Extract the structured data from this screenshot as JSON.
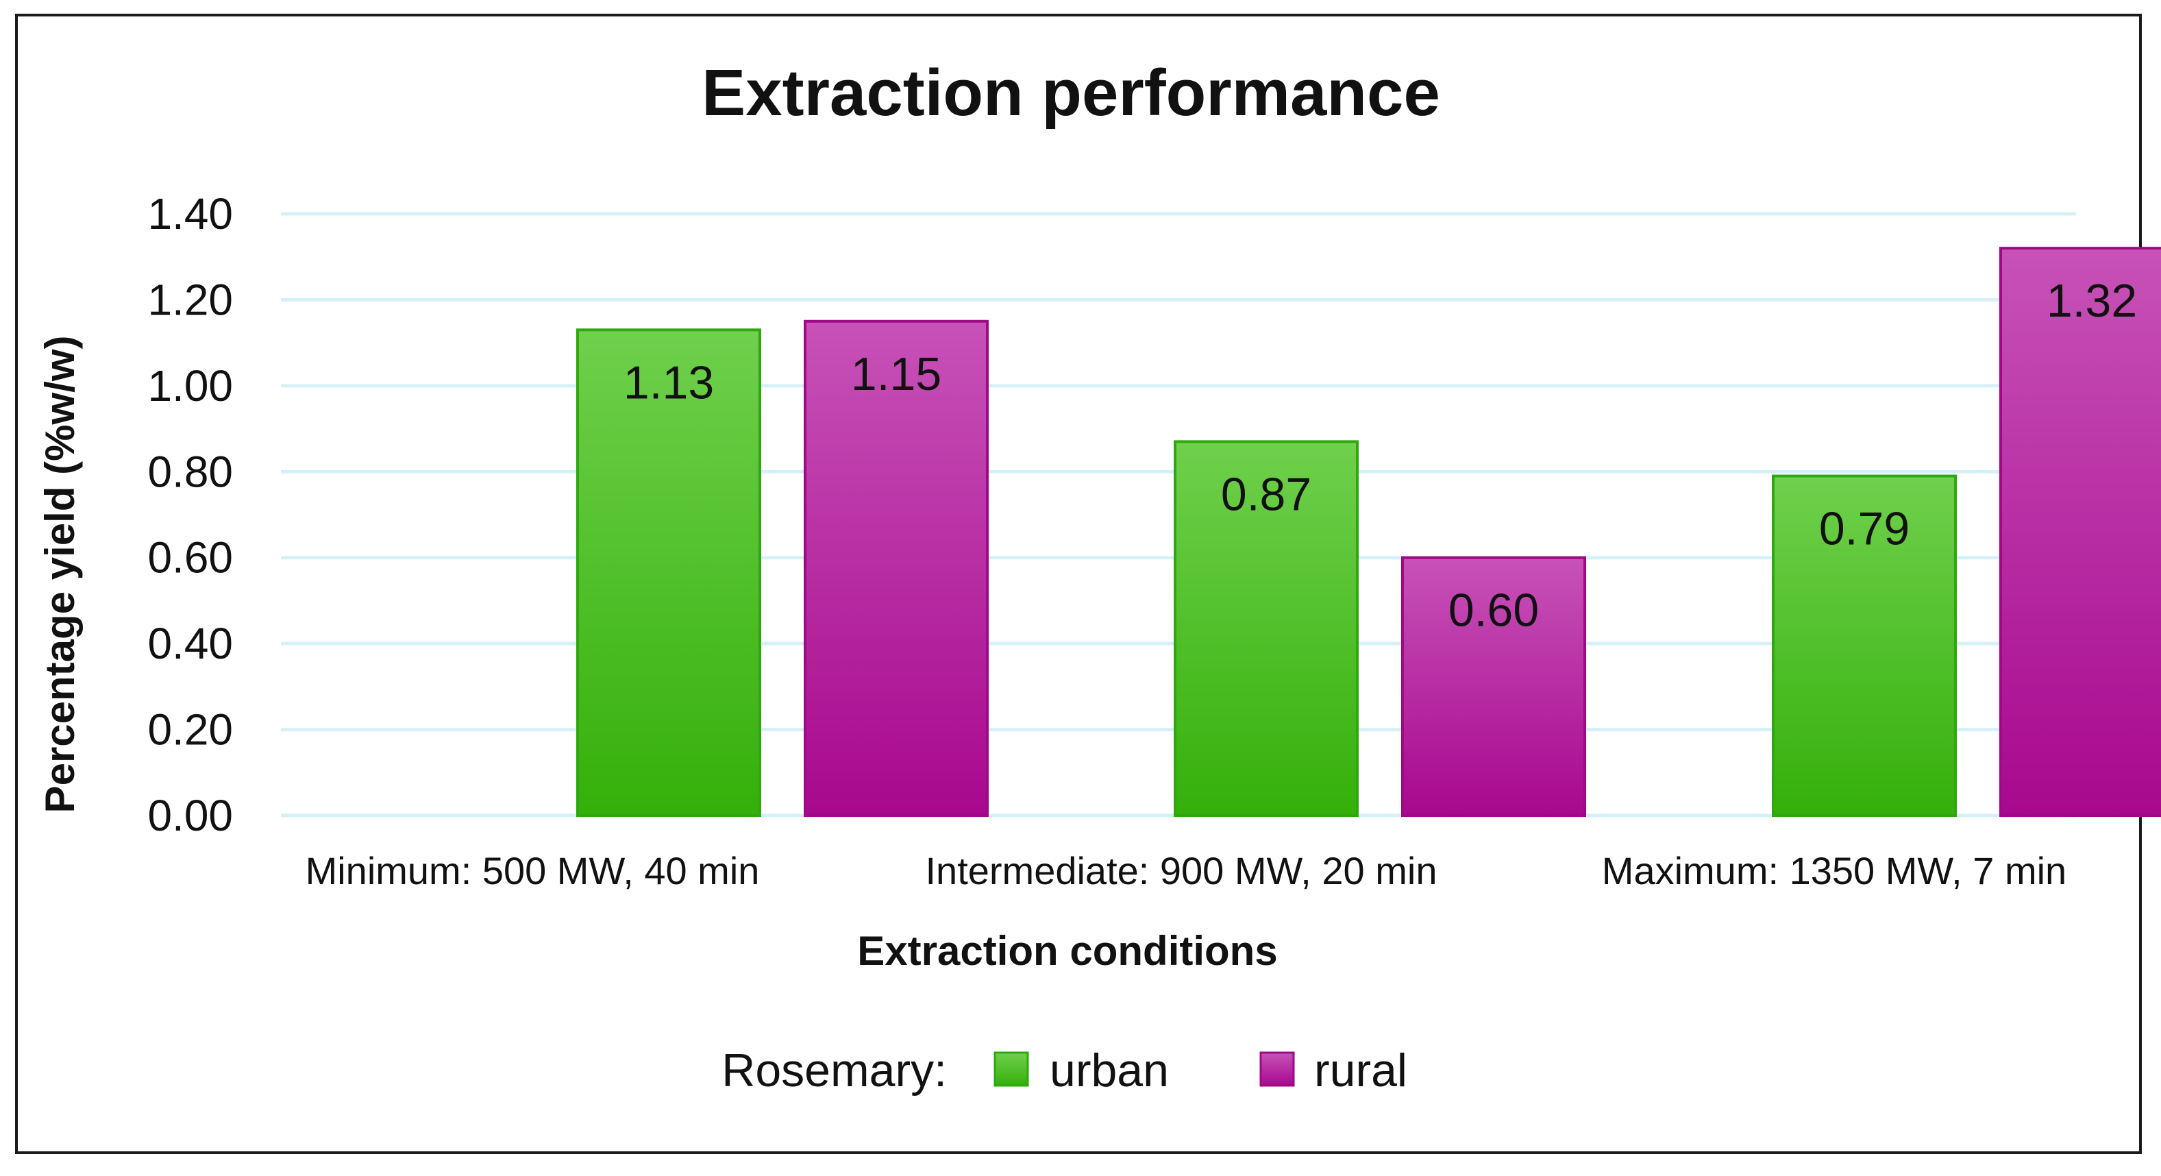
{
  "chart_data": {
    "type": "bar",
    "title": "Extraction performance",
    "xlabel": "Extraction conditions",
    "ylabel": "Percentage yield (%w/w)",
    "categories": [
      "Minimum: 500 MW, 40 min",
      "Intermediate: 900 MW, 20 min",
      "Maximum: 1350 MW, 7 min"
    ],
    "series": [
      {
        "name": "urban",
        "values": [
          1.13,
          0.87,
          0.79
        ],
        "color": "#3db81e"
      },
      {
        "name": "rural",
        "values": [
          1.15,
          0.6,
          1.32
        ],
        "color": "#b5169e"
      }
    ],
    "ylim": [
      0,
      1.4
    ],
    "yticks": [
      "0.00",
      "0.20",
      "0.40",
      "0.60",
      "0.80",
      "1.00",
      "1.20",
      "1.40"
    ],
    "data_labels": [
      [
        "1.13",
        "0.87",
        "0.79"
      ],
      [
        "1.15",
        "0.60",
        "1.32"
      ]
    ],
    "legend_prefix": "Rosemary:",
    "legend_position": "bottom",
    "grid": true,
    "grid_color": "#d6f0f7"
  }
}
